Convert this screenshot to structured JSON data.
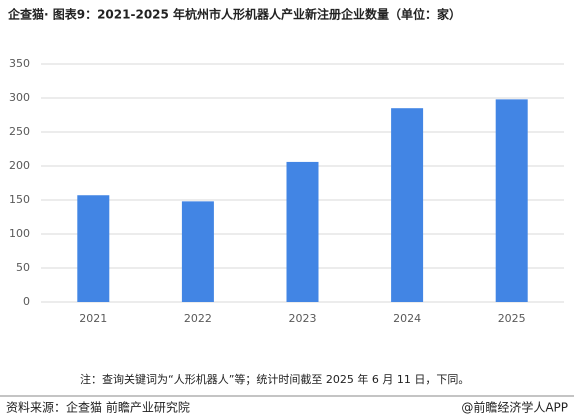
{
  "chart_data": {
    "type": "bar",
    "title": "企查猫· 图表9：2021-2025 年杭州市人形机器人产业新注册企业数量（单位：家）",
    "categories": [
      "2021",
      "2022",
      "2023",
      "2024",
      "2025"
    ],
    "values": [
      157,
      148,
      206,
      285,
      298
    ],
    "color": "#4285e4",
    "ylim": [
      0,
      350
    ],
    "yticks": [
      0,
      50,
      100,
      150,
      200,
      250,
      300,
      350
    ],
    "grid": true,
    "note": "注：查询关键词为“人形机器人”等；统计时间截至 2025 年 6 月 11 日，下同。",
    "source": "资料来源：企查猫 前瞻产业研究院",
    "credit": "@前瞻经济学人APP"
  }
}
